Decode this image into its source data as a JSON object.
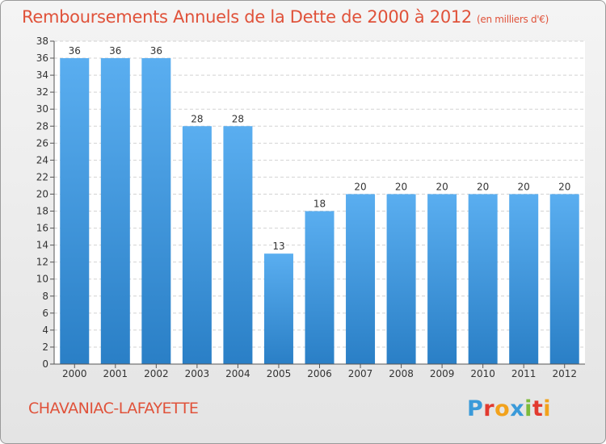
{
  "header": {
    "title": "Remboursements Annuels de la Dette de 2000 à 2012",
    "unit": "(en milliers d'€)"
  },
  "commune": "CHAVANIAC-LAFAYETTE",
  "logo": {
    "text": "Proxiti",
    "letters": [
      {
        "ch": "P",
        "color": "#3a9ad9"
      },
      {
        "ch": "r",
        "color": "#e23a2f"
      },
      {
        "ch": "o",
        "color": "#f2a21c"
      },
      {
        "ch": "x",
        "color": "#3a9ad9"
      },
      {
        "ch": "i",
        "color": "#7dbb3b"
      },
      {
        "ch": "t",
        "color": "#e23a2f"
      },
      {
        "ch": "i",
        "color": "#f2a21c"
      }
    ]
  },
  "chart_data": {
    "type": "bar",
    "categories": [
      "2000",
      "2001",
      "2002",
      "2003",
      "2004",
      "2005",
      "2006",
      "2007",
      "2008",
      "2009",
      "2010",
      "2011",
      "2012"
    ],
    "values": [
      36,
      36,
      36,
      28,
      28,
      13,
      18,
      20,
      20,
      20,
      20,
      20,
      20
    ],
    "ylim": [
      0,
      38
    ],
    "yticks": [
      0,
      2,
      4,
      6,
      8,
      10,
      12,
      14,
      16,
      18,
      20,
      22,
      24,
      26,
      28,
      30,
      32,
      34,
      36,
      38
    ],
    "grid": true,
    "bar_color_top": "#5aaef0",
    "bar_color_bottom": "#2a7fc6",
    "title_color": "#e0523a"
  }
}
